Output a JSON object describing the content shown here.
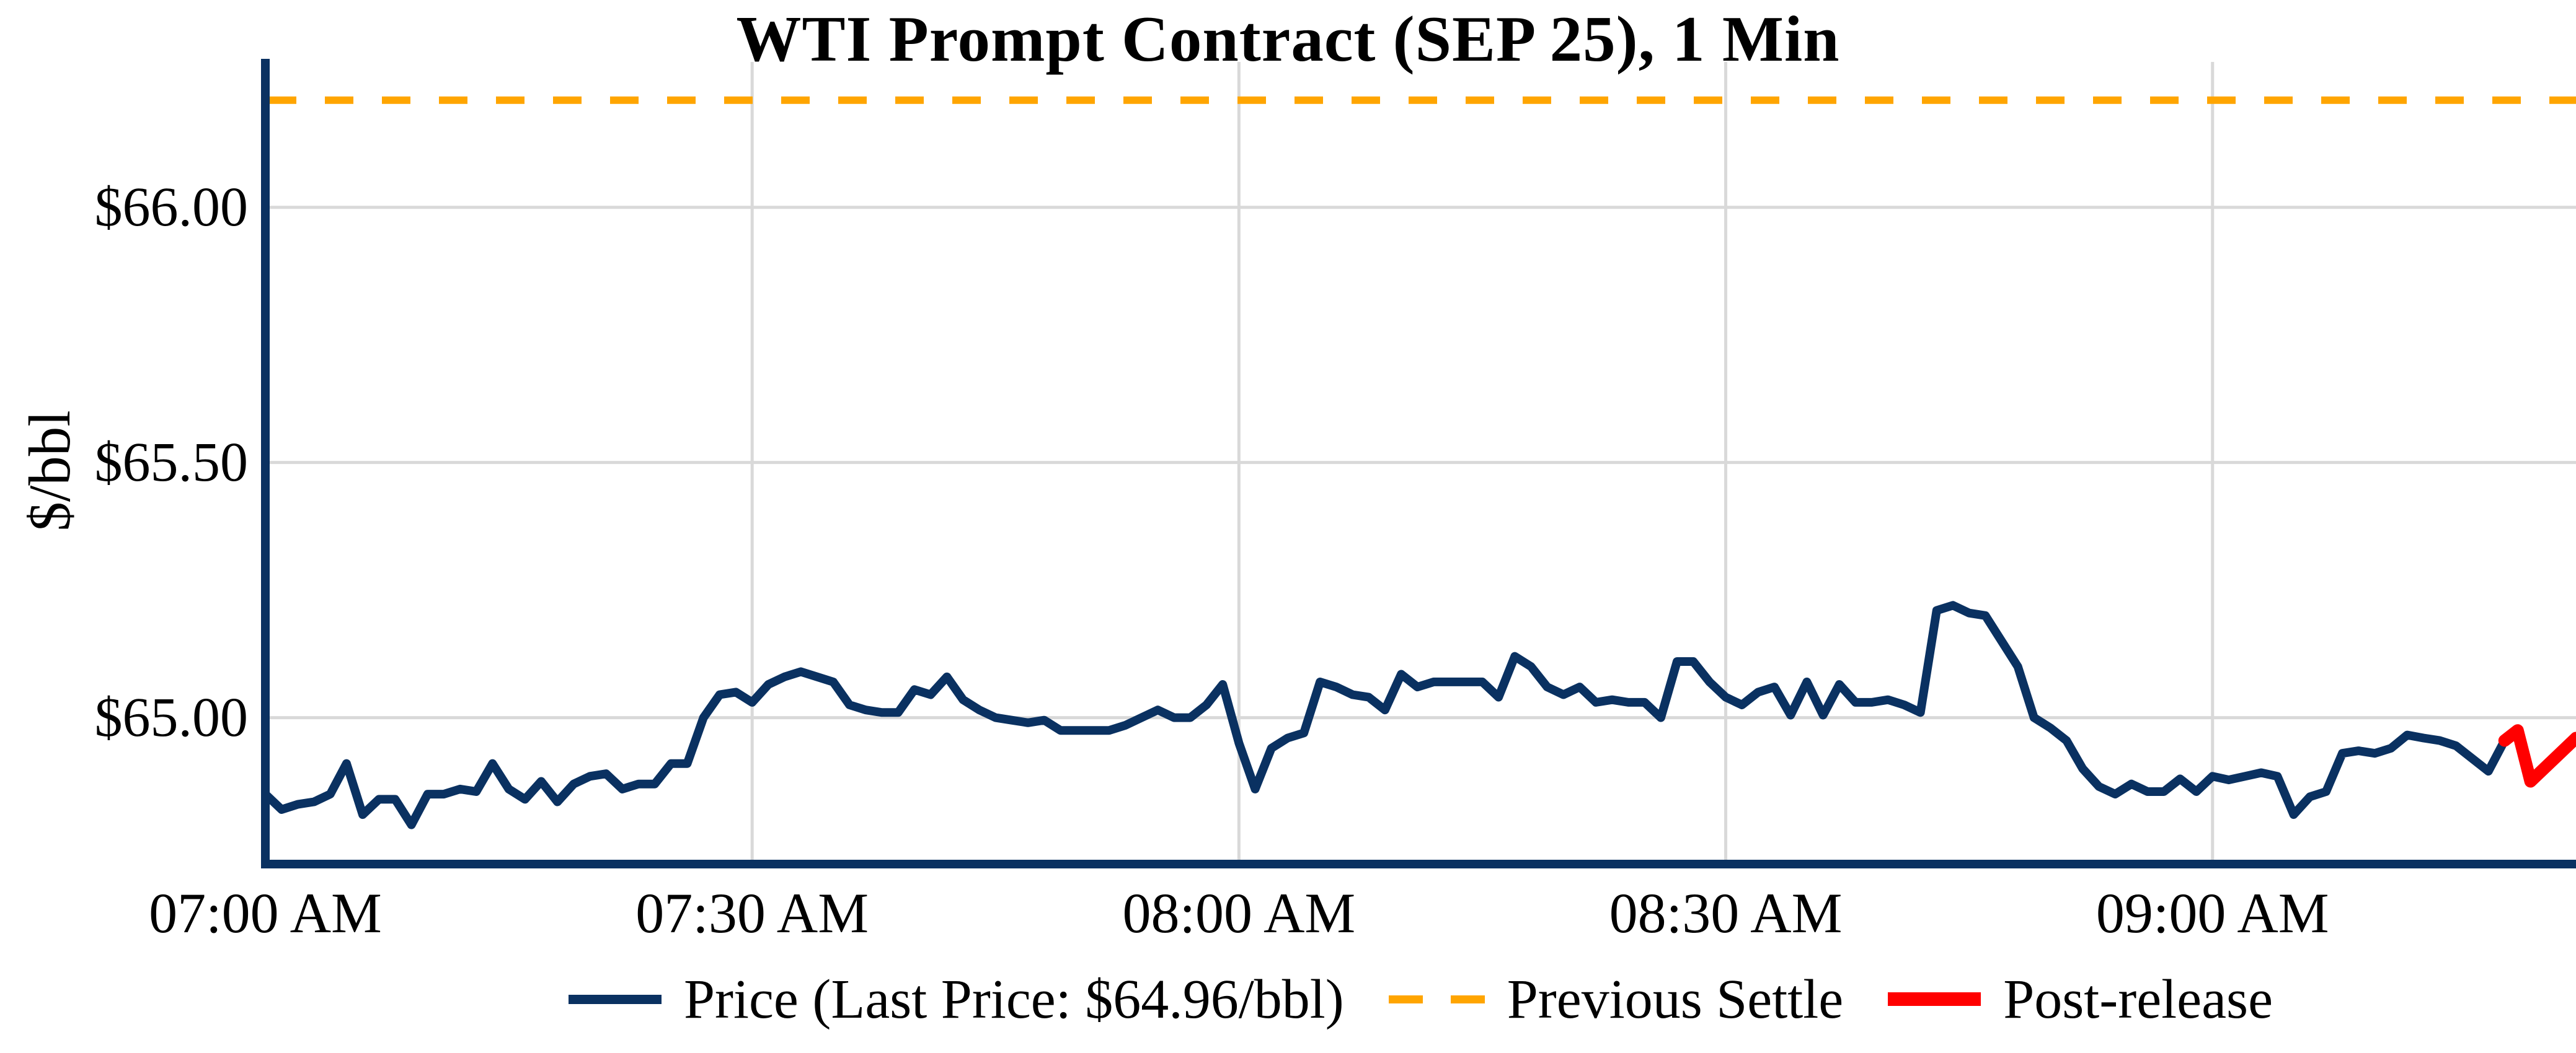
{
  "title": "WTI Prompt Contract (SEP 25), 1 Min",
  "colors": {
    "price_line": "#0a3161",
    "previous_settle_line": "#ffa500",
    "post_release_line": "#ff0000",
    "gridline": "#d9d9d9",
    "axis_spine": "#0a3161",
    "text": "#000000",
    "background": "#ffffff"
  },
  "chart_data": {
    "type": "line",
    "title": "WTI Prompt Contract (SEP 25), 1 Min",
    "xlabel": "",
    "ylabel": "$/bbl",
    "x_unit": "minutes after 07:00 AM",
    "xlim_minutes": [
      0,
      142.4
    ],
    "ylim": [
      64.713,
      66.285
    ],
    "grid": true,
    "legend_position": "bottom-center",
    "x_ticks": [
      {
        "minute": 0,
        "label": "07:00 AM"
      },
      {
        "minute": 30,
        "label": "07:30 AM"
      },
      {
        "minute": 60,
        "label": "08:00 AM"
      },
      {
        "minute": 90,
        "label": "08:30 AM"
      },
      {
        "minute": 120,
        "label": "09:00 AM"
      }
    ],
    "y_ticks": [
      {
        "value": 65.0,
        "label": "$65.00"
      },
      {
        "value": 65.5,
        "label": "$65.50"
      },
      {
        "value": 66.0,
        "label": "$66.00"
      }
    ],
    "previous_settle_value": 66.21,
    "last_price": 64.96,
    "series": [
      {
        "name": "Price (Last Price: $64.96/bbl)",
        "type": "line",
        "style": "solid",
        "color": "#0a3161",
        "x_start_minute": 0,
        "x_step_minutes": 1,
        "prices": [
          64.85,
          64.82,
          64.83,
          64.835,
          64.85,
          64.91,
          64.81,
          64.84,
          64.84,
          64.79,
          64.85,
          64.85,
          64.86,
          64.855,
          64.91,
          64.86,
          64.84,
          64.875,
          64.835,
          64.87,
          64.885,
          64.89,
          64.86,
          64.87,
          64.87,
          64.91,
          64.91,
          65.0,
          65.045,
          65.05,
          65.03,
          65.065,
          65.08,
          65.09,
          65.08,
          65.07,
          65.025,
          65.015,
          65.01,
          65.01,
          65.055,
          65.045,
          65.08,
          65.035,
          65.015,
          65.0,
          64.995,
          64.99,
          64.995,
          64.975,
          64.975,
          64.975,
          64.975,
          64.985,
          65.0,
          65.015,
          65.0,
          65.0,
          65.025,
          65.065,
          64.95,
          64.86,
          64.94,
          64.96,
          64.97,
          65.07,
          65.06,
          65.045,
          65.04,
          65.015,
          65.085,
          65.06,
          65.07,
          65.07,
          65.07,
          65.07,
          65.04,
          65.12,
          65.1,
          65.06,
          65.045,
          65.06,
          65.03,
          65.035,
          65.03,
          65.03,
          65.0,
          65.11,
          65.11,
          65.07,
          65.04,
          65.025,
          65.05,
          65.06,
          65.005,
          65.07,
          65.005,
          65.065,
          65.03,
          65.03,
          65.035,
          65.025,
          65.01,
          65.21,
          65.22,
          65.205,
          65.2,
          65.15,
          65.1,
          65.0,
          64.98,
          64.955,
          64.9,
          64.865,
          64.85,
          64.87,
          64.855,
          64.855,
          64.88,
          64.855,
          64.885,
          64.878,
          64.885,
          64.892,
          64.885,
          64.81,
          64.845,
          64.855,
          64.93,
          64.935,
          64.93,
          64.94,
          64.966,
          64.96,
          64.955,
          64.945,
          64.92,
          64.895,
          64.955
        ]
      },
      {
        "name": "Previous Settle",
        "type": "hline",
        "style": "dashed",
        "color": "#ffa500",
        "value": 66.21
      },
      {
        "name": "Post-release",
        "type": "line",
        "style": "solid-thick",
        "color": "#ff0000",
        "x_minutes": [
          138,
          138.8,
          139.6,
          142.4
        ],
        "prices": [
          64.955,
          64.975,
          64.875,
          64.96
        ]
      }
    ]
  },
  "legend": {
    "price_label": "Price (Last Price: $64.96/bbl)",
    "settle_label": "Previous Settle",
    "post_release_label": "Post-release"
  }
}
